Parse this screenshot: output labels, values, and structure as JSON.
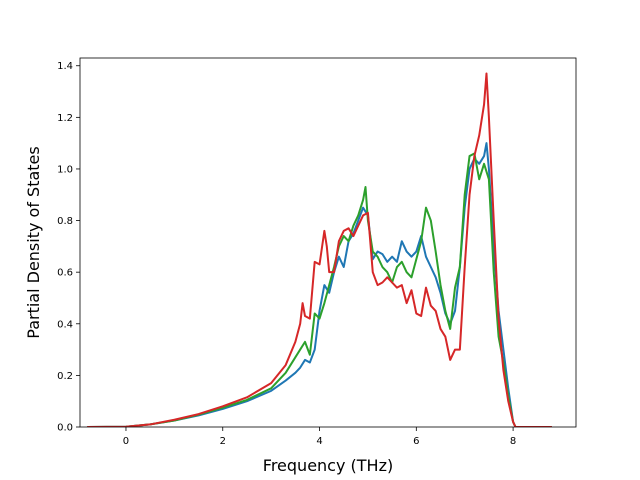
{
  "chart_data": {
    "type": "line",
    "xlabel": "Frequency (THz)",
    "ylabel": "Partial Density of States",
    "xlim": [
      -0.95,
      9.3
    ],
    "ylim": [
      0,
      1.43
    ],
    "xticks": [
      0,
      2,
      4,
      6,
      8
    ],
    "yticks": [
      0.0,
      0.2,
      0.4,
      0.6,
      0.8,
      1.0,
      1.2,
      1.4
    ],
    "xtick_labels": [
      "0",
      "2",
      "4",
      "6",
      "8"
    ],
    "ytick_labels": [
      "0.0",
      "0.2",
      "0.4",
      "0.6",
      "0.8",
      "1.0",
      "1.2",
      "1.4"
    ],
    "grid": false,
    "series": [
      {
        "color": "#1f77b4",
        "x": [
          -0.8,
          0,
          0.5,
          1,
          1.5,
          2,
          2.5,
          3,
          3.3,
          3.5,
          3.6,
          3.7,
          3.8,
          3.9,
          4.0,
          4.1,
          4.2,
          4.3,
          4.4,
          4.5,
          4.6,
          4.7,
          4.8,
          4.9,
          5.0,
          5.1,
          5.2,
          5.3,
          5.4,
          5.5,
          5.6,
          5.7,
          5.8,
          5.9,
          6.0,
          6.1,
          6.2,
          6.3,
          6.4,
          6.5,
          6.6,
          6.7,
          6.8,
          6.9,
          7.0,
          7.1,
          7.2,
          7.3,
          7.4,
          7.45,
          7.5,
          7.6,
          7.7,
          7.8,
          7.9,
          8.0,
          8.05,
          8.1,
          8.5,
          8.8
        ],
        "values": [
          0,
          0.001,
          0.01,
          0.025,
          0.045,
          0.07,
          0.1,
          0.14,
          0.18,
          0.21,
          0.23,
          0.26,
          0.25,
          0.3,
          0.45,
          0.55,
          0.52,
          0.6,
          0.66,
          0.62,
          0.72,
          0.75,
          0.8,
          0.85,
          0.82,
          0.65,
          0.68,
          0.67,
          0.64,
          0.66,
          0.64,
          0.72,
          0.68,
          0.66,
          0.68,
          0.74,
          0.66,
          0.62,
          0.58,
          0.52,
          0.44,
          0.4,
          0.45,
          0.62,
          0.85,
          1.0,
          1.04,
          1.02,
          1.05,
          1.1,
          1.0,
          0.7,
          0.45,
          0.3,
          0.15,
          0.02,
          0,
          0,
          0,
          0
        ]
      },
      {
        "color": "#2ca02c",
        "x": [
          -0.8,
          0,
          0.5,
          1,
          1.5,
          2,
          2.5,
          3,
          3.3,
          3.5,
          3.6,
          3.7,
          3.8,
          3.9,
          4.0,
          4.1,
          4.2,
          4.3,
          4.4,
          4.5,
          4.6,
          4.7,
          4.8,
          4.9,
          4.95,
          5.0,
          5.1,
          5.2,
          5.3,
          5.4,
          5.5,
          5.6,
          5.7,
          5.8,
          5.9,
          6.0,
          6.1,
          6.2,
          6.3,
          6.4,
          6.5,
          6.6,
          6.7,
          6.8,
          6.9,
          7.0,
          7.1,
          7.2,
          7.3,
          7.4,
          7.5,
          7.6,
          7.7,
          7.8,
          7.9,
          8.0,
          8.05,
          8.1,
          8.5,
          8.8
        ],
        "values": [
          0,
          0.001,
          0.01,
          0.025,
          0.048,
          0.075,
          0.105,
          0.15,
          0.21,
          0.27,
          0.3,
          0.33,
          0.28,
          0.44,
          0.42,
          0.48,
          0.55,
          0.62,
          0.7,
          0.74,
          0.72,
          0.78,
          0.82,
          0.88,
          0.93,
          0.8,
          0.68,
          0.66,
          0.62,
          0.6,
          0.56,
          0.62,
          0.64,
          0.6,
          0.58,
          0.65,
          0.72,
          0.85,
          0.8,
          0.68,
          0.55,
          0.45,
          0.38,
          0.54,
          0.62,
          0.9,
          1.05,
          1.06,
          0.96,
          1.02,
          0.96,
          0.6,
          0.35,
          0.25,
          0.12,
          0.02,
          0,
          0,
          0,
          0
        ]
      },
      {
        "color": "#d62728",
        "x": [
          -0.8,
          0,
          0.5,
          1,
          1.5,
          2,
          2.5,
          3,
          3.3,
          3.5,
          3.6,
          3.65,
          3.7,
          3.8,
          3.9,
          4.0,
          4.1,
          4.15,
          4.2,
          4.3,
          4.4,
          4.5,
          4.6,
          4.7,
          4.8,
          4.9,
          5.0,
          5.1,
          5.2,
          5.3,
          5.4,
          5.5,
          5.6,
          5.7,
          5.8,
          5.9,
          6.0,
          6.1,
          6.2,
          6.3,
          6.4,
          6.5,
          6.6,
          6.7,
          6.8,
          6.9,
          7.0,
          7.1,
          7.2,
          7.3,
          7.4,
          7.45,
          7.5,
          7.6,
          7.7,
          7.8,
          7.9,
          8.0,
          8.05,
          8.1,
          8.5,
          8.8
        ],
        "values": [
          0,
          0.001,
          0.01,
          0.028,
          0.05,
          0.08,
          0.115,
          0.17,
          0.24,
          0.33,
          0.4,
          0.48,
          0.43,
          0.42,
          0.64,
          0.63,
          0.76,
          0.7,
          0.6,
          0.6,
          0.72,
          0.76,
          0.77,
          0.74,
          0.78,
          0.82,
          0.83,
          0.6,
          0.55,
          0.56,
          0.58,
          0.56,
          0.54,
          0.55,
          0.48,
          0.53,
          0.44,
          0.43,
          0.54,
          0.47,
          0.45,
          0.38,
          0.35,
          0.26,
          0.3,
          0.3,
          0.62,
          0.9,
          1.05,
          1.13,
          1.25,
          1.37,
          1.2,
          0.8,
          0.42,
          0.22,
          0.1,
          0.02,
          0,
          0,
          0,
          0
        ]
      }
    ]
  }
}
